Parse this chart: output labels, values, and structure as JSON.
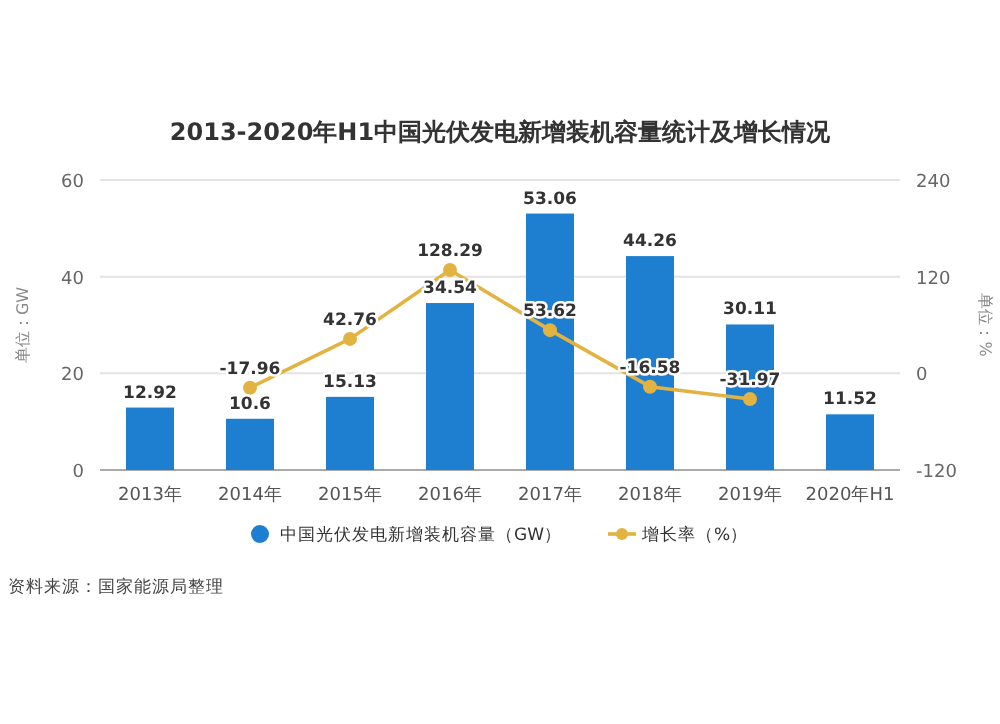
{
  "chart_data": {
    "type": "bar",
    "title": "2013-2020年H1中国光伏发电新增装机容量统计及增长情况",
    "categories": [
      "2013年",
      "2014年",
      "2015年",
      "2016年",
      "2017年",
      "2018年",
      "2019年",
      "2020年H1"
    ],
    "series": [
      {
        "name": "中国光伏发电新增装机容量（GW）",
        "color": "#1e7fd0",
        "values": [
          12.92,
          10.6,
          15.13,
          34.54,
          53.06,
          44.26,
          30.11,
          11.52
        ],
        "value_labels": [
          "12.92",
          "10.6",
          "15.13",
          "34.54",
          "53.06",
          "44.26",
          "30.11",
          "11.52"
        ]
      },
      {
        "name": "增长率（%）",
        "type": "line",
        "axis": "y2",
        "color": "#e3b341",
        "marker": "circle",
        "values": [
          null,
          -17.96,
          42.76,
          128.29,
          53.62,
          -16.58,
          -31.97,
          null
        ],
        "value_labels": [
          null,
          "-17.96",
          "42.76",
          "128.29",
          "53.62",
          "-16.58",
          "-31.97",
          null
        ]
      }
    ],
    "ylabel": "单位：GW",
    "y2label": "单位：%",
    "ylim": [
      0,
      60
    ],
    "yticks": [
      0,
      20,
      40,
      60
    ],
    "y2lim": [
      -120,
      240
    ],
    "y2ticks": [
      -120,
      0,
      120,
      240
    ],
    "grid": "y",
    "legend": "bottom",
    "annotations": [
      "资料来源：国家能源局整理"
    ]
  }
}
